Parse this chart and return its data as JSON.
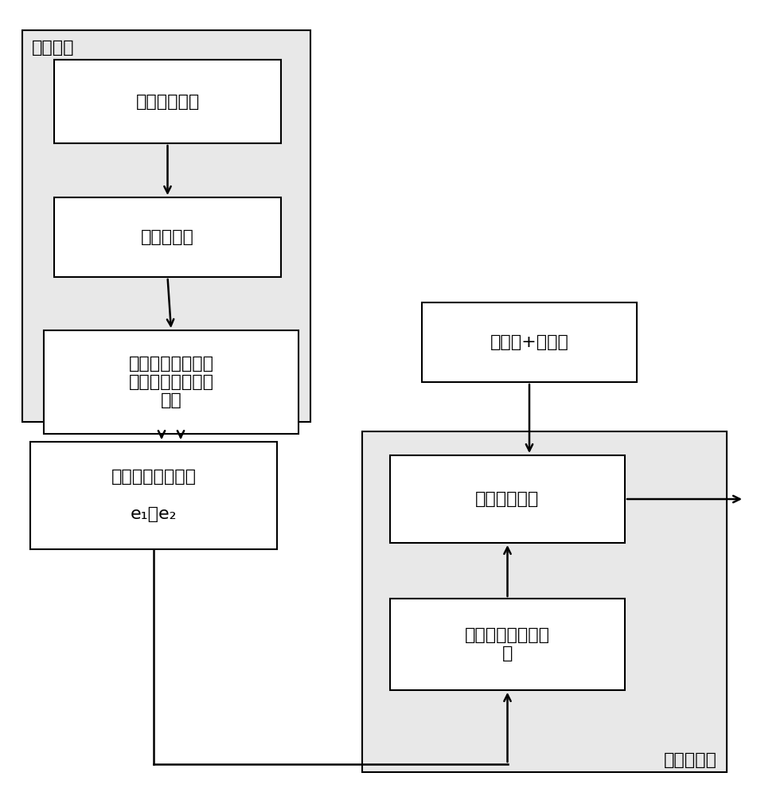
{
  "fig_width": 9.51,
  "fig_height": 10.0,
  "bg_color": "#ffffff",
  "gray_bg": "#e8e8e8",
  "box_bg": "#ffffff",
  "box_edge": "#000000",
  "text_color": "#000000",
  "signal_processing_label": "信号处理",
  "box1_text": "位置给定信号",
  "box2_text": "跟踪微分器",
  "box3_text": "位置给定信号的最\n佳逼近、转速给定\n信号",
  "box4_text": "位置转速误差信号\n\ne₁、e₂",
  "box5_text": "编码器+锁相环",
  "box6_text": "电流环控制器",
  "box7_text": "位置转速统一控制\n器",
  "servo_label": "伺服控制器",
  "font_size_label": 16,
  "font_size_box": 16,
  "font_size_small_label": 15
}
